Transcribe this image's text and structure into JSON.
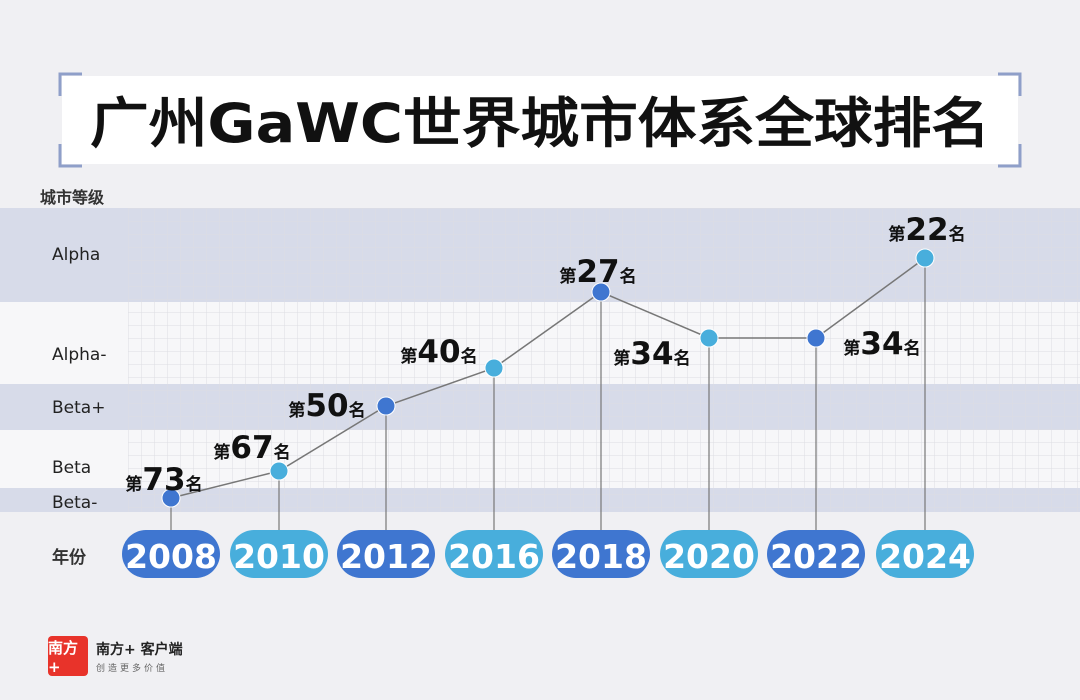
{
  "chart_data": {
    "type": "line",
    "title": "广州GaWC世界城市体系全球排名",
    "ylabel": "城市等级",
    "xlabel": "年份",
    "categories": [
      "2008",
      "2010",
      "2012",
      "2016",
      "2018",
      "2020",
      "2022",
      "2024"
    ],
    "y_levels": [
      "Beta-",
      "Beta",
      "Beta+",
      "Alpha-",
      "Alpha"
    ],
    "series": [
      {
        "values": [
          73,
          67,
          50,
          40,
          27,
          34,
          34,
          22
        ],
        "labels": [
          "第73名",
          "第67名",
          "第50名",
          "第40名",
          "第27名",
          "第34名",
          "第34名",
          "第22名"
        ]
      }
    ],
    "rank_prefix": "第",
    "rank_suffix": "名",
    "colors": {
      "dark_blue": "#3f76d0",
      "light_blue": "#48aedc",
      "band": "#d7dbe9",
      "line": "#777777"
    },
    "grid": true,
    "legend": "none"
  },
  "brand": {
    "logo_text": "南方+",
    "name": "南方+ 客户端",
    "slogan": "创造更多价值"
  }
}
